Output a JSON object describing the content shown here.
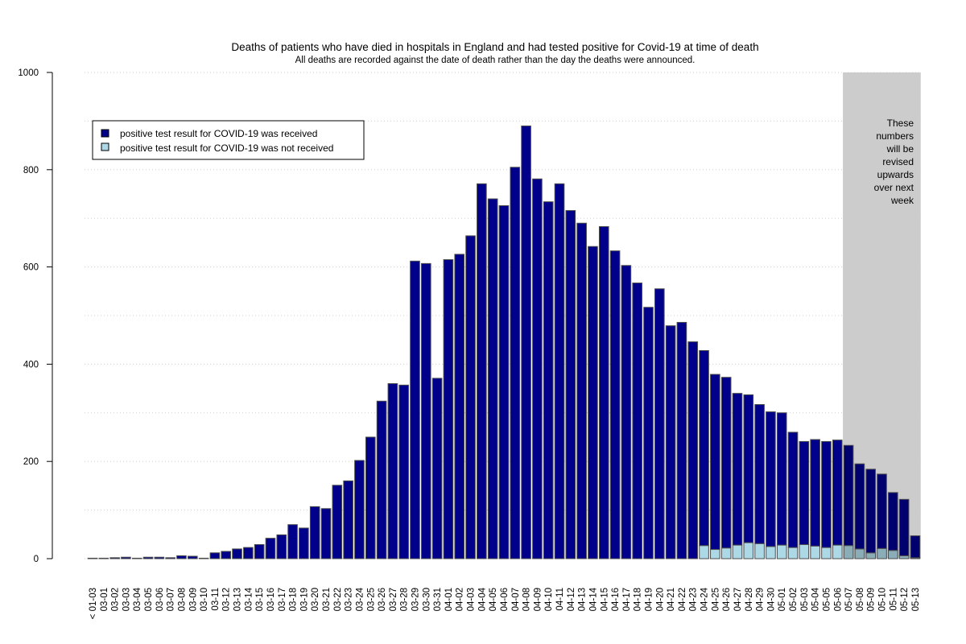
{
  "chart_data": {
    "type": "bar",
    "title": "Deaths of patients who have died in hospitals in England and had tested positive for Covid-19 at time of death",
    "subtitle": "All deaths are recorded against the date of death rather than the day the deaths were announced.",
    "xlabel": "",
    "ylabel": "",
    "ylim": [
      0,
      1000
    ],
    "yticks": [
      0,
      200,
      400,
      600,
      800,
      1000
    ],
    "grid": true,
    "stacked": true,
    "legend_position": "top-left",
    "categories": [
      "< 01-03",
      "03-01",
      "03-02",
      "03-03",
      "03-04",
      "03-05",
      "03-06",
      "03-07",
      "03-08",
      "03-09",
      "03-10",
      "03-11",
      "03-12",
      "03-13",
      "03-14",
      "03-15",
      "03-16",
      "03-17",
      "03-18",
      "03-19",
      "03-20",
      "03-21",
      "03-22",
      "03-23",
      "03-24",
      "03-25",
      "03-26",
      "03-27",
      "03-28",
      "03-29",
      "03-30",
      "03-31",
      "04-01",
      "04-02",
      "04-03",
      "04-04",
      "04-05",
      "04-06",
      "04-07",
      "04-08",
      "04-09",
      "04-10",
      "04-11",
      "04-12",
      "04-13",
      "04-14",
      "04-15",
      "04-16",
      "04-17",
      "04-18",
      "04-19",
      "04-20",
      "04-21",
      "04-22",
      "04-23",
      "04-24",
      "04-25",
      "04-26",
      "04-27",
      "04-28",
      "04-29",
      "04-30",
      "05-01",
      "05-02",
      "05-03",
      "05-04",
      "05-05",
      "05-06",
      "05-07",
      "05-08",
      "05-09",
      "05-10",
      "05-11",
      "05-12",
      "05-13"
    ],
    "series": [
      {
        "name": "positive test result for COVID-19 was received",
        "color": "#00008b",
        "values": [
          1,
          1,
          2,
          3,
          1,
          3,
          3,
          2,
          6,
          5,
          1,
          12,
          15,
          20,
          23,
          29,
          42,
          49,
          70,
          63,
          107,
          103,
          151,
          160,
          202,
          250,
          324,
          360,
          357,
          612,
          607,
          371,
          615,
          626,
          664,
          771,
          740,
          726,
          805,
          890,
          781,
          734,
          771,
          716,
          690,
          642,
          683,
          633,
          603,
          567,
          517,
          555,
          479,
          486,
          446,
          401,
          360,
          351,
          312,
          304,
          286,
          277,
          272,
          237,
          212,
          219,
          218,
          216,
          206,
          175,
          172,
          153,
          119,
          116,
          45
        ]
      },
      {
        "name": "positive test result for COVID-19 was not received",
        "color": "#add8e6",
        "values": [
          0,
          0,
          0,
          0,
          0,
          0,
          0,
          0,
          0,
          0,
          0,
          0,
          0,
          0,
          0,
          0,
          0,
          0,
          0,
          0,
          0,
          0,
          0,
          0,
          0,
          0,
          0,
          0,
          0,
          0,
          0,
          0,
          0,
          0,
          0,
          0,
          0,
          0,
          0,
          0,
          0,
          0,
          0,
          0,
          0,
          0,
          0,
          0,
          0,
          0,
          0,
          0,
          0,
          0,
          0,
          27,
          19,
          22,
          28,
          33,
          31,
          25,
          28,
          23,
          29,
          26,
          23,
          28,
          27,
          20,
          12,
          21,
          17,
          6,
          2
        ]
      }
    ],
    "provisional_region": {
      "from": "05-07",
      "to": "05-13",
      "color": "#cccccc"
    },
    "annotation": [
      "These",
      "numbers",
      "will be",
      "revised",
      "upwards",
      "over next",
      "week"
    ]
  }
}
